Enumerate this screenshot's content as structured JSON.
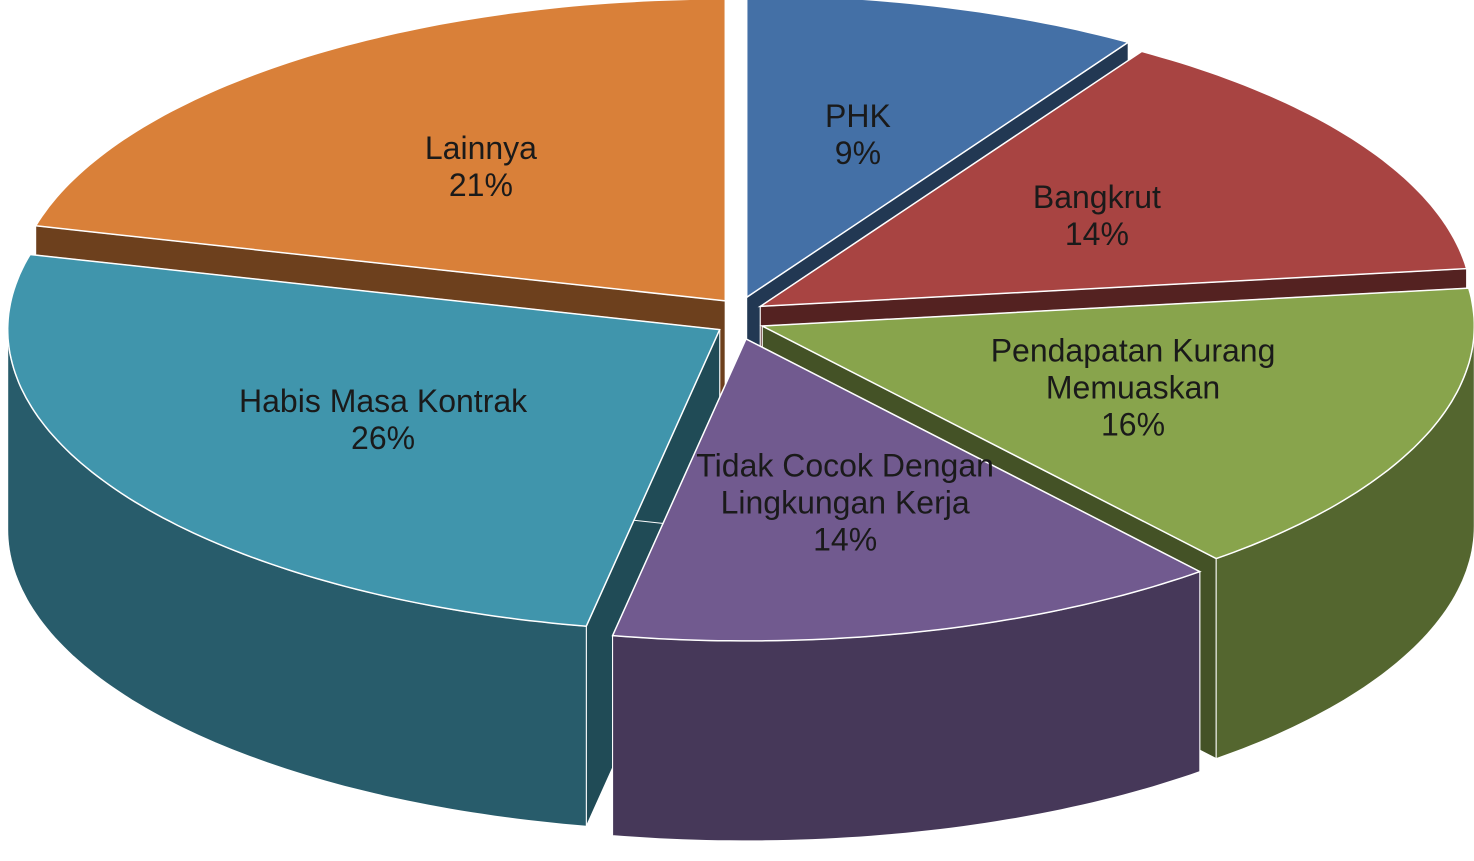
{
  "chart_data": {
    "type": "pie",
    "categories": [
      "PHK",
      "Bangkrut",
      "Pendapatan Kurang Memuaskan",
      "Tidak Cocok Dengan Lingkungan Kerja",
      "Habis Masa Kontrak",
      "Lainnya"
    ],
    "values": [
      9,
      14,
      16,
      14,
      26,
      21
    ],
    "value_labels": [
      "9%",
      "14%",
      "16%",
      "14%",
      "26%",
      "21%"
    ],
    "colors": [
      "#4470a6",
      "#a84442",
      "#88a44c",
      "#715a8f",
      "#4095ac",
      "#d98039"
    ]
  }
}
